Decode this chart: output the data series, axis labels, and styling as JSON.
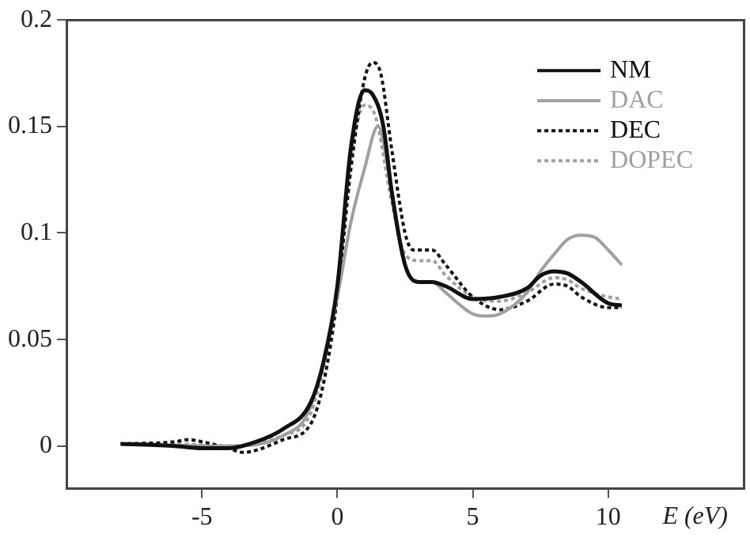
{
  "chart_data": {
    "type": "line",
    "xlabel": "E (eV)",
    "xlim": [
      -10,
      15
    ],
    "xticks": [
      -5,
      0,
      5,
      10
    ],
    "ylim": [
      -0.02,
      0.2
    ],
    "yticks": [
      0,
      0.05,
      0.1,
      0.15,
      0.2
    ],
    "grid": false,
    "legend": "top right",
    "marker": "none",
    "series": [
      {
        "name": "NM",
        "color": "#111111",
        "line_style": "solid",
        "x": [
          -8,
          -6,
          -5,
          -4,
          -3,
          -2,
          -1,
          -0.5,
          0,
          0.5,
          1,
          1.3,
          1.7,
          2,
          2.5,
          3,
          3.5,
          4,
          5,
          6,
          7,
          7.5,
          8,
          8.5,
          9,
          10,
          10.5
        ],
        "values": [
          0.001,
          0,
          -0.001,
          -0.001,
          0.002,
          0.008,
          0.02,
          0.04,
          0.075,
          0.14,
          0.167,
          0.165,
          0.15,
          0.12,
          0.085,
          0.077,
          0.077,
          0.075,
          0.069,
          0.07,
          0.074,
          0.08,
          0.082,
          0.081,
          0.077,
          0.067,
          0.066
        ]
      },
      {
        "name": "DAC",
        "color": "#a0a0a0",
        "line_style": "solid",
        "x": [
          -8,
          -4,
          -2,
          -1,
          0,
          0.5,
          1,
          1.5,
          2,
          2.5,
          3,
          3.5,
          4,
          5,
          5.5,
          6,
          7,
          7.5,
          8,
          8.5,
          9,
          9.5,
          10,
          10.5
        ],
        "values": [
          0.001,
          0,
          0.005,
          0.018,
          0.07,
          0.105,
          0.13,
          0.15,
          0.12,
          0.085,
          0.077,
          0.077,
          0.072,
          0.062,
          0.061,
          0.062,
          0.072,
          0.082,
          0.09,
          0.097,
          0.099,
          0.098,
          0.092,
          0.085
        ]
      },
      {
        "name": "DEC",
        "color": "#111111",
        "line_style": "dotted",
        "x": [
          -8,
          -6,
          -5.5,
          -5,
          -4,
          -3.5,
          -3,
          -2,
          -1,
          -0.5,
          0,
          0.5,
          1,
          1.3,
          1.6,
          2,
          2.5,
          2.8,
          3.5,
          4,
          5,
          6,
          7,
          8,
          8.5,
          9,
          10,
          10.5
        ],
        "values": [
          0.001,
          0.002,
          0.003,
          0.002,
          -0.001,
          -0.003,
          -0.002,
          0.003,
          0.01,
          0.03,
          0.07,
          0.13,
          0.172,
          0.18,
          0.175,
          0.14,
          0.1,
          0.092,
          0.092,
          0.085,
          0.07,
          0.064,
          0.068,
          0.076,
          0.075,
          0.07,
          0.065,
          0.065
        ]
      },
      {
        "name": "DOPEC",
        "color": "#a0a0a0",
        "line_style": "dotted",
        "x": [
          -8,
          -6,
          -4,
          -2,
          -1,
          0,
          0.5,
          1,
          1.4,
          2,
          2.5,
          3,
          3.5,
          4,
          5,
          6,
          7,
          8,
          8.5,
          9,
          10,
          10.5
        ],
        "values": [
          0.001,
          0.001,
          0,
          0.005,
          0.015,
          0.075,
          0.135,
          0.16,
          0.155,
          0.115,
          0.09,
          0.087,
          0.087,
          0.08,
          0.07,
          0.068,
          0.072,
          0.079,
          0.078,
          0.074,
          0.07,
          0.069
        ]
      }
    ]
  }
}
